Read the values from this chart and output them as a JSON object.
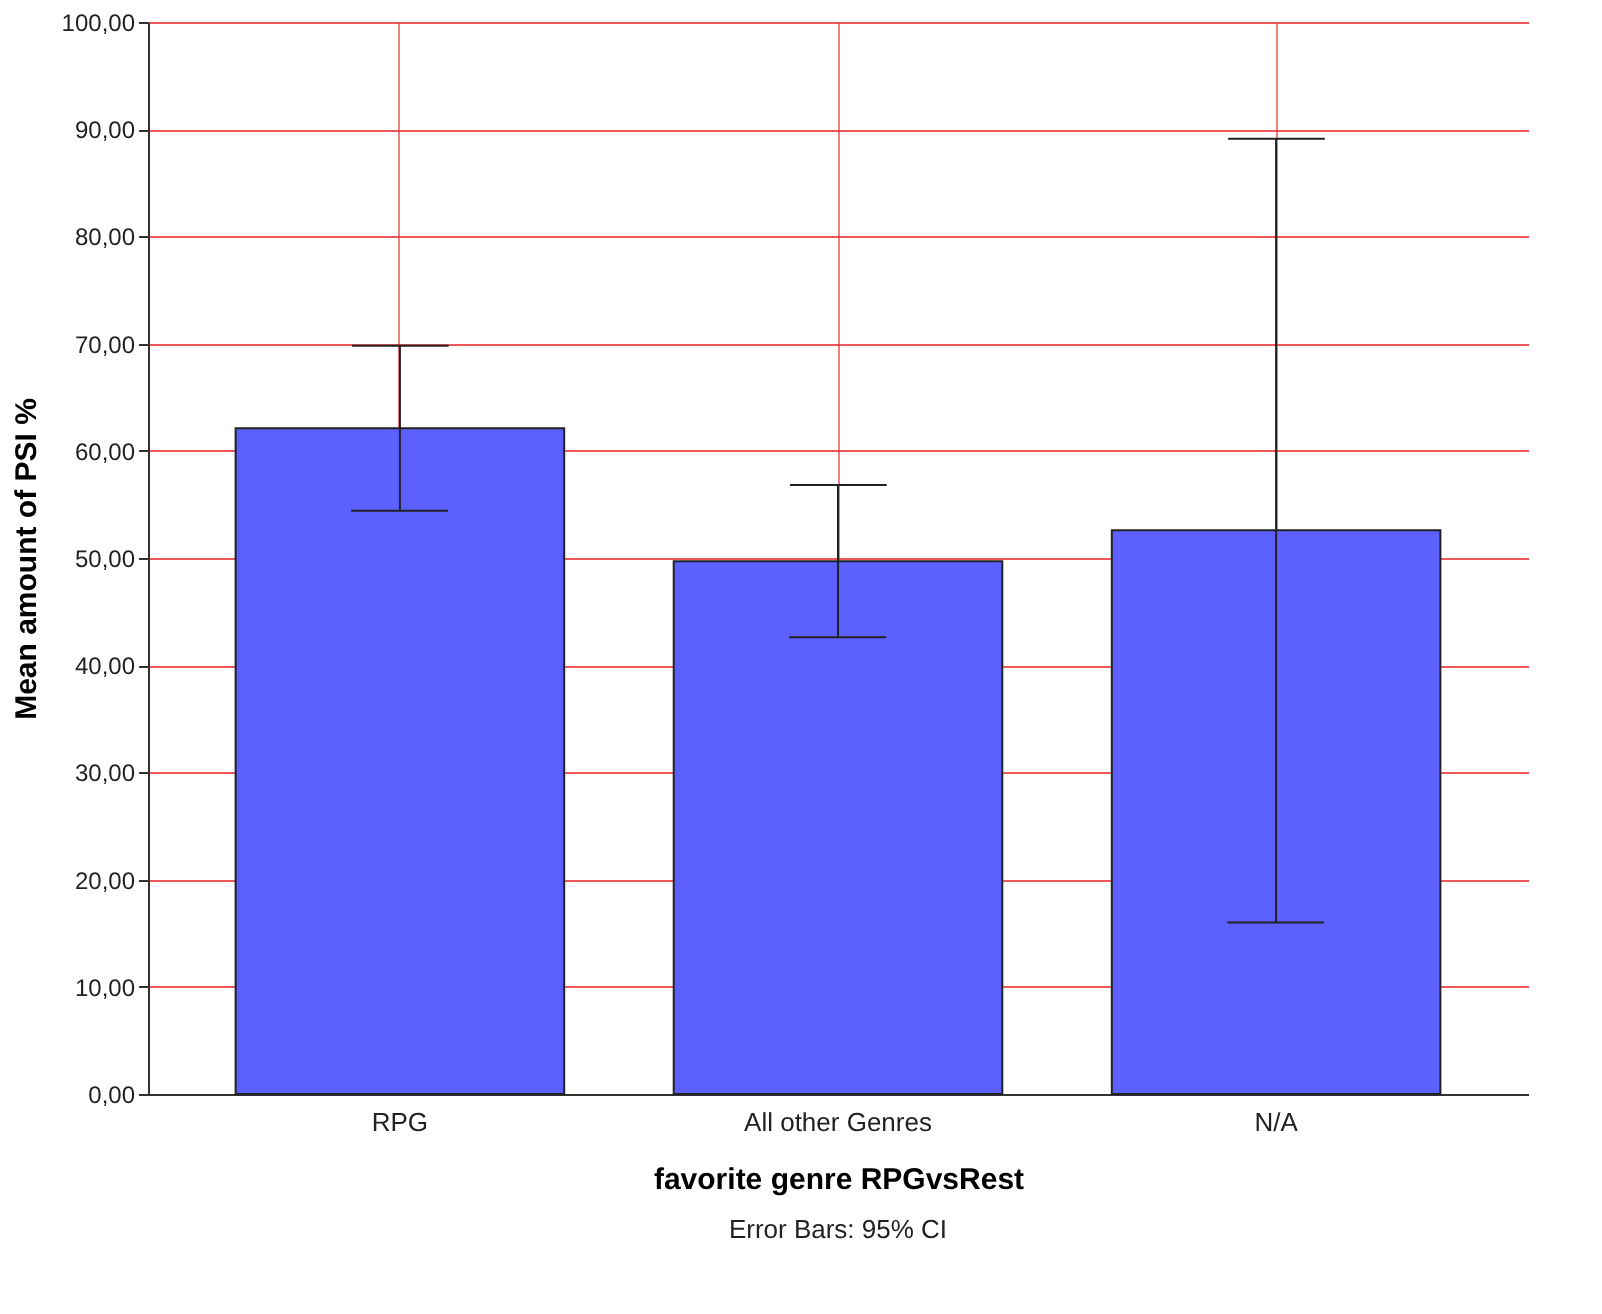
{
  "chart_data": {
    "type": "bar",
    "xlabel": "favorite genre RPGvsRest",
    "ylabel": "Mean amount of PSI %",
    "categories": [
      "RPG",
      "All other Genres",
      "N/A"
    ],
    "values": [
      62.1,
      49.7,
      52.6
    ],
    "color": "#5b60ff",
    "errors": [
      [
        54.4,
        69.8
      ],
      [
        42.6,
        56.8
      ],
      [
        16.0,
        89.1
      ]
    ],
    "ylim": [
      0,
      100
    ],
    "yticks": [
      {
        "value": 0,
        "label": "0,00"
      },
      {
        "value": 10,
        "label": "10,00"
      },
      {
        "value": 20,
        "label": "20,00"
      },
      {
        "value": 30,
        "label": "30,00"
      },
      {
        "value": 40,
        "label": "40,00"
      },
      {
        "value": 50,
        "label": "50,00"
      },
      {
        "value": 60,
        "label": "60,00"
      },
      {
        "value": 70,
        "label": "70,00"
      },
      {
        "value": 80,
        "label": "80,00"
      },
      {
        "value": 90,
        "label": "90,00"
      },
      {
        "value": 100,
        "label": "100,00"
      }
    ],
    "grid": true,
    "annotations": [
      "Error Bars: 95% CI"
    ]
  }
}
